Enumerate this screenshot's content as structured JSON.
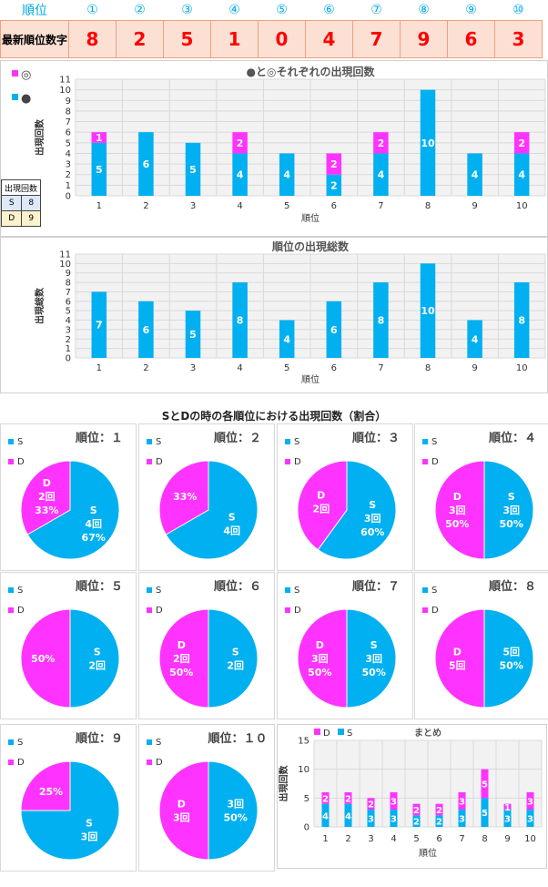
{
  "header": {
    "rank_label": "順位",
    "ranks": [
      "①",
      "②",
      "③",
      "④",
      "⑤",
      "⑥",
      "⑦",
      "⑧",
      "⑨",
      "⑩"
    ],
    "latest_label": "最新順位数字",
    "latest_digits": [
      "8",
      "2",
      "5",
      "1",
      "0",
      "4",
      "7",
      "9",
      "6",
      "3"
    ]
  },
  "colors": {
    "S": "#00b0f0",
    "D": "#ff33ff",
    "grid": "#d9d9d9",
    "plot_bg": "#f2f2f2",
    "header_blue": "#00a8e8",
    "latest_red": "#ff0000"
  },
  "count_table": {
    "title": "出現回数",
    "rows": [
      {
        "key": "S",
        "value": "8"
      },
      {
        "key": "D",
        "value": "9"
      }
    ]
  },
  "pies_title": "SとDの時の各順位における出現回数（割合）",
  "chart_data": [
    {
      "type": "bar",
      "title": "●と◎それぞれの出現回数",
      "xlabel": "順位",
      "ylabel": "出現回数",
      "ylim": [
        0,
        11
      ],
      "yticks": [
        "0",
        "1",
        "2",
        "3",
        "4",
        "5",
        "6",
        "7",
        "8",
        "9",
        "10",
        "11"
      ],
      "categories": [
        "1",
        "2",
        "3",
        "4",
        "5",
        "6",
        "7",
        "8",
        "9",
        "10"
      ],
      "legend": [
        {
          "symbol": "◎",
          "color": "#ff33ff"
        },
        {
          "symbol": "●",
          "color": "#00b0f0"
        }
      ],
      "series": [
        {
          "values": [
            5,
            6,
            5,
            4,
            4,
            2,
            4,
            10,
            4,
            4
          ],
          "labels": [
            "5",
            "6",
            "5",
            "4",
            "4",
            "2",
            "4",
            "10",
            "4",
            "4"
          ],
          "color": "#00b0f0"
        },
        {
          "values": [
            1,
            0,
            0,
            2,
            0,
            2,
            2,
            0,
            0,
            2
          ],
          "labels": [
            "1",
            "",
            "",
            "2",
            "",
            "2",
            "2",
            "",
            "",
            "2"
          ],
          "color": "#ff33ff"
        }
      ],
      "stacked": true,
      "grid": true
    },
    {
      "type": "bar",
      "title": "順位の出現総数",
      "xlabel": "順位",
      "ylabel": "出現総数",
      "ylim": [
        0,
        11
      ],
      "yticks": [
        "0",
        "1",
        "2",
        "3",
        "4",
        "5",
        "6",
        "7",
        "8",
        "9",
        "10",
        "11"
      ],
      "categories": [
        "1",
        "2",
        "3",
        "4",
        "5",
        "6",
        "7",
        "8",
        "9",
        "10"
      ],
      "series": [
        {
          "values": [
            7,
            6,
            5,
            8,
            4,
            6,
            8,
            10,
            4,
            8
          ],
          "labels": [
            "7",
            "6",
            "5",
            "8",
            "4",
            "6",
            "8",
            "10",
            "4",
            "8"
          ],
          "color": "#00b0f0"
        }
      ],
      "grid": true
    },
    {
      "type": "pie",
      "title": "順位：１",
      "legend": [
        "S",
        "D"
      ],
      "slices": [
        {
          "name": "S",
          "value": 4,
          "labels": [
            "S",
            "4回",
            "67%"
          ]
        },
        {
          "name": "D",
          "value": 2,
          "labels": [
            "D",
            "2回",
            "33%"
          ]
        }
      ]
    },
    {
      "type": "pie",
      "title": "順位：２",
      "legend": [
        "S",
        "D"
      ],
      "slices": [
        {
          "name": "S",
          "value": 4,
          "labels": [
            "S",
            "4回"
          ]
        },
        {
          "name": "D",
          "value": 2,
          "labels": [
            "33%"
          ]
        }
      ]
    },
    {
      "type": "pie",
      "title": "順位：３",
      "legend": [
        "S",
        "D"
      ],
      "slices": [
        {
          "name": "S",
          "value": 3,
          "labels": [
            "S",
            "3回",
            "60%"
          ]
        },
        {
          "name": "D",
          "value": 2,
          "labels": [
            "D",
            "2回"
          ]
        }
      ]
    },
    {
      "type": "pie",
      "title": "順位：４",
      "legend": [
        "S",
        "D"
      ],
      "slices": [
        {
          "name": "S",
          "value": 3,
          "labels": [
            "S",
            "3回",
            "50%"
          ]
        },
        {
          "name": "D",
          "value": 3,
          "labels": [
            "D",
            "3回",
            "50%"
          ]
        }
      ]
    },
    {
      "type": "pie",
      "title": "順位：５",
      "legend": [
        "S",
        "D"
      ],
      "slices": [
        {
          "name": "S",
          "value": 2,
          "labels": [
            "S",
            "2回"
          ]
        },
        {
          "name": "D",
          "value": 2,
          "labels": [
            "50%"
          ]
        }
      ]
    },
    {
      "type": "pie",
      "title": "順位：６",
      "legend": [
        "S",
        "D"
      ],
      "slices": [
        {
          "name": "S",
          "value": 2,
          "labels": [
            "S",
            "2回"
          ]
        },
        {
          "name": "D",
          "value": 2,
          "labels": [
            "D",
            "2回",
            "50%"
          ]
        }
      ]
    },
    {
      "type": "pie",
      "title": "順位：７",
      "legend": [
        "S",
        "D"
      ],
      "slices": [
        {
          "name": "S",
          "value": 3,
          "labels": [
            "S",
            "3回",
            "50%"
          ]
        },
        {
          "name": "D",
          "value": 3,
          "labels": [
            "D",
            "3回",
            "50%"
          ]
        }
      ]
    },
    {
      "type": "pie",
      "title": "順位：８",
      "legend": [
        "S",
        "D"
      ],
      "slices": [
        {
          "name": "S",
          "value": 5,
          "labels": [
            "5回",
            "50%"
          ]
        },
        {
          "name": "D",
          "value": 5,
          "labels": [
            "D",
            "5回"
          ]
        }
      ]
    },
    {
      "type": "pie",
      "title": "順位：９",
      "legend": [
        "S",
        "D"
      ],
      "slices": [
        {
          "name": "S",
          "value": 3,
          "labels": [
            "S",
            "3回"
          ]
        },
        {
          "name": "D",
          "value": 1,
          "labels": [
            "25%"
          ]
        }
      ]
    },
    {
      "type": "pie",
      "title": "順位：１０",
      "legend": [
        "S",
        "D"
      ],
      "slices": [
        {
          "name": "S",
          "value": 3,
          "labels": [
            "3回",
            "50%"
          ]
        },
        {
          "name": "D",
          "value": 3,
          "labels": [
            "D",
            "3回"
          ]
        }
      ]
    },
    {
      "type": "bar",
      "title": "まとめ",
      "xlabel": "順位",
      "ylabel": "出現回数",
      "ylim": [
        0,
        15
      ],
      "yticks": [
        "0",
        "5",
        "10",
        "15"
      ],
      "categories": [
        "1",
        "2",
        "3",
        "4",
        "5",
        "6",
        "7",
        "8",
        "9",
        "10"
      ],
      "legend": [
        {
          "name": "D",
          "color": "#ff33ff"
        },
        {
          "name": "S",
          "color": "#00b0f0"
        }
      ],
      "series": [
        {
          "name": "S",
          "values": [
            4,
            4,
            3,
            3,
            2,
            2,
            3,
            5,
            3,
            3
          ],
          "labels": [
            "4",
            "4",
            "3",
            "3",
            "2",
            "2",
            "3",
            "5",
            "3",
            "3"
          ],
          "color": "#00b0f0"
        },
        {
          "name": "D",
          "values": [
            2,
            2,
            2,
            3,
            2,
            2,
            3,
            5,
            1,
            3
          ],
          "labels": [
            "2",
            "2",
            "2",
            "3",
            "2",
            "2",
            "3",
            "5",
            "1",
            "3"
          ],
          "color": "#ff33ff"
        }
      ],
      "stacked": true,
      "grid": true
    }
  ]
}
